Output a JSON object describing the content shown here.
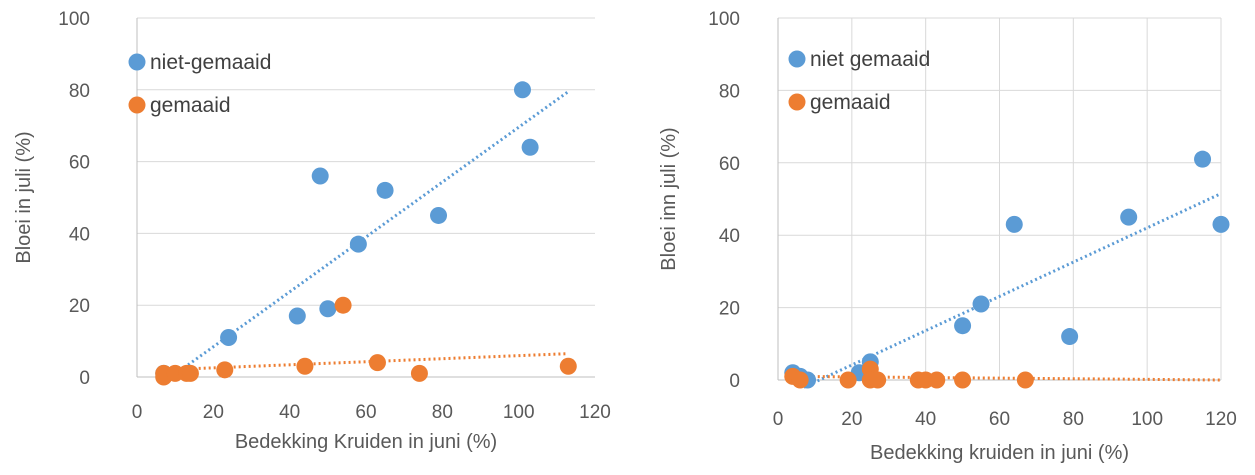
{
  "chart_data": [
    {
      "type": "scatter",
      "xlabel": "Bedekking Kruiden in juni (%)",
      "ylabel": "Bloei in juli (%)",
      "xlim": [
        0,
        120
      ],
      "ylim": [
        0,
        100
      ],
      "xticks": [
        "0",
        "20",
        "40",
        "60",
        "80",
        "100",
        "120"
      ],
      "yticks": [
        "0",
        "20",
        "40",
        "60",
        "80",
        "100"
      ],
      "grid": "horizontal",
      "legend": "top-left",
      "series": [
        {
          "name": "niet-gemaaid",
          "color": "#5B9BD5",
          "points": [
            [
              7,
              1
            ],
            [
              24,
              11
            ],
            [
              42,
              17
            ],
            [
              48,
              56
            ],
            [
              50,
              19
            ],
            [
              58,
              37
            ],
            [
              65,
              52
            ],
            [
              79,
              45
            ],
            [
              101,
              80
            ],
            [
              103,
              64
            ]
          ],
          "trendline": [
            [
              7,
              -1.5
            ],
            [
              113,
              79.5
            ]
          ]
        },
        {
          "name": "gemaaid",
          "color": "#ED7D31",
          "points": [
            [
              7,
              1
            ],
            [
              7,
              0
            ],
            [
              10,
              1
            ],
            [
              13,
              1
            ],
            [
              14,
              1
            ],
            [
              23,
              2
            ],
            [
              44,
              3
            ],
            [
              54,
              20
            ],
            [
              63,
              4
            ],
            [
              74,
              1
            ],
            [
              113,
              3
            ]
          ],
          "trendline": [
            [
              7,
              2
            ],
            [
              113,
              6.5
            ]
          ]
        }
      ]
    },
    {
      "type": "scatter",
      "xlabel": "Bedekking kruiden in juni (%)",
      "ylabel": "Bloei inn juli (%)",
      "xlim": [
        0,
        120
      ],
      "ylim": [
        0,
        100
      ],
      "xticks": [
        "0",
        "20",
        "40",
        "60",
        "80",
        "100",
        "120"
      ],
      "yticks": [
        "0",
        "20",
        "40",
        "60",
        "80",
        "100"
      ],
      "grid": "both",
      "legend": "top-left",
      "series": [
        {
          "name": "niet gemaaid",
          "color": "#5B9BD5",
          "points": [
            [
              4,
              2
            ],
            [
              6,
              1
            ],
            [
              8,
              0
            ],
            [
              22,
              2
            ],
            [
              25,
              5
            ],
            [
              50,
              15
            ],
            [
              55,
              21
            ],
            [
              64,
              43
            ],
            [
              79,
              12
            ],
            [
              95,
              45
            ],
            [
              115,
              61
            ],
            [
              120,
              43
            ]
          ],
          "trendline": [
            [
              7,
              -2
            ],
            [
              120,
              51.5
            ]
          ]
        },
        {
          "name": "gemaaid",
          "color": "#ED7D31",
          "points": [
            [
              4,
              1
            ],
            [
              6,
              0
            ],
            [
              19,
              0
            ],
            [
              25,
              3
            ],
            [
              25,
              0
            ],
            [
              27,
              0
            ],
            [
              38,
              0
            ],
            [
              40,
              0
            ],
            [
              43,
              0
            ],
            [
              50,
              0
            ],
            [
              67,
              0
            ]
          ],
          "trendline": [
            [
              4,
              1
            ],
            [
              120,
              0
            ]
          ]
        }
      ]
    }
  ]
}
